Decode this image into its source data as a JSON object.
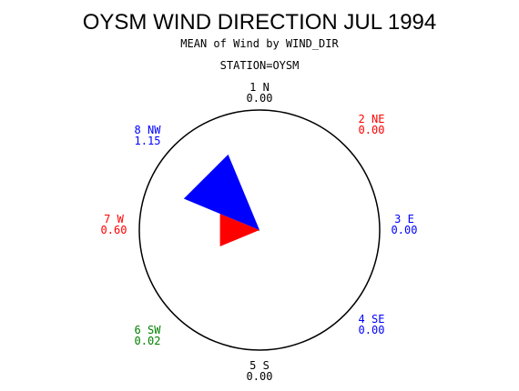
{
  "chart_data": {
    "type": "wind-rose",
    "title": "OYSM WIND DIRECTION JUL 1994",
    "subtitle": "MEAN of Wind by WIND_DIR",
    "station_label": "STATION=OYSM",
    "max_value": 1.15,
    "directions": [
      {
        "label": "1  N",
        "value_text": "0.00",
        "value": 0.0,
        "bearing_deg": 0,
        "color": "#000000"
      },
      {
        "label": "2  NE",
        "value_text": "0.00",
        "value": 0.0,
        "bearing_deg": 45,
        "color": "#ff0000"
      },
      {
        "label": "3  E",
        "value_text": "0.00",
        "value": 0.0,
        "bearing_deg": 90,
        "color": "#0000ff"
      },
      {
        "label": "4  SE",
        "value_text": "0.00",
        "value": 0.0,
        "bearing_deg": 135,
        "color": "#0000ff"
      },
      {
        "label": "5  S",
        "value_text": "0.00",
        "value": 0.0,
        "bearing_deg": 180,
        "color": "#000000"
      },
      {
        "label": "6  SW",
        "value_text": "0.02",
        "value": 0.02,
        "bearing_deg": 225,
        "color": "#008000"
      },
      {
        "label": "7  W",
        "value_text": "0.60",
        "value": 0.6,
        "bearing_deg": 270,
        "color": "#ff0000"
      },
      {
        "label": "8  NW",
        "value_text": "1.15",
        "value": 1.15,
        "bearing_deg": 315,
        "color": "#0000ff"
      }
    ]
  }
}
